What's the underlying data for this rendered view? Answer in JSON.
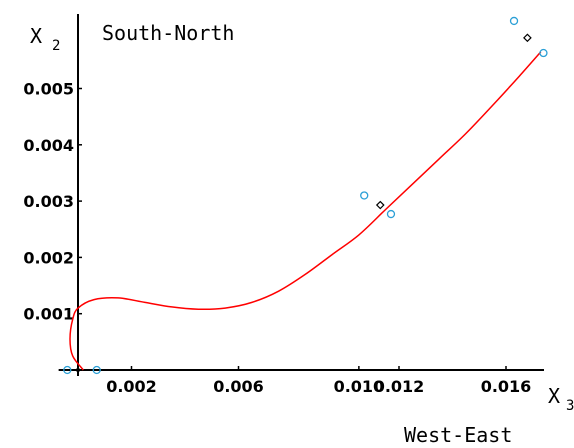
{
  "chart_data": {
    "type": "scatter",
    "title": "",
    "x_axis_symbol": "X",
    "x_axis_subscript": "3",
    "y_axis_symbol": "X",
    "y_axis_subscript": "2",
    "x_annotation": "West-East",
    "y_annotation": "South-North",
    "xlim": [
      -0.0005,
      0.0185
    ],
    "ylim": [
      0,
      0.0063
    ],
    "x_ticks": [
      {
        "value": 0.002,
        "label": "0.002"
      },
      {
        "value": 0.006,
        "label": "0.006"
      },
      {
        "value": 0.0105,
        "label": "0.010"
      },
      {
        "value": 0.012,
        "label": "0.012"
      },
      {
        "value": 0.016,
        "label": "0.016"
      }
    ],
    "y_ticks": [
      {
        "value": 0.001,
        "label": "0.001"
      },
      {
        "value": 0.002,
        "label": "0.002"
      },
      {
        "value": 0.003,
        "label": "0.003"
      },
      {
        "value": 0.004,
        "label": "0.004"
      },
      {
        "value": 0.005,
        "label": "0.005"
      }
    ],
    "series": [
      {
        "marker": "circle",
        "color": "#2a9fd6",
        "x": [
          -0.0004,
          0.0007,
          0.0107,
          0.0117,
          0.0163,
          0.0174
        ],
        "y": [
          0.0,
          0.0,
          0.0031,
          0.00277,
          0.0062,
          0.00563
        ]
      },
      {
        "marker": "diamond",
        "color": "#000000",
        "x": [
          0.0113,
          0.0168
        ],
        "y": [
          0.00293,
          0.0059
        ]
      },
      {
        "marker": "curve",
        "color": "#ff0000",
        "x": [
          0.0002,
          -0.0002,
          -0.0003,
          -0.0002,
          0.0,
          0.0006,
          0.0015,
          0.0025,
          0.0035,
          0.0045,
          0.0055,
          0.0065,
          0.0075,
          0.0085,
          0.0095,
          0.0105,
          0.0115,
          0.0125,
          0.0135,
          0.0145,
          0.0155,
          0.0165,
          0.0173
        ],
        "y": [
          0.0,
          0.00025,
          0.00055,
          0.0009,
          0.0011,
          0.00125,
          0.00128,
          0.0012,
          0.00112,
          0.00108,
          0.0011,
          0.0012,
          0.0014,
          0.0017,
          0.00205,
          0.0024,
          0.00285,
          0.0033,
          0.00375,
          0.0042,
          0.0047,
          0.00522,
          0.00565
        ]
      }
    ],
    "grid": false,
    "legend": "none"
  }
}
